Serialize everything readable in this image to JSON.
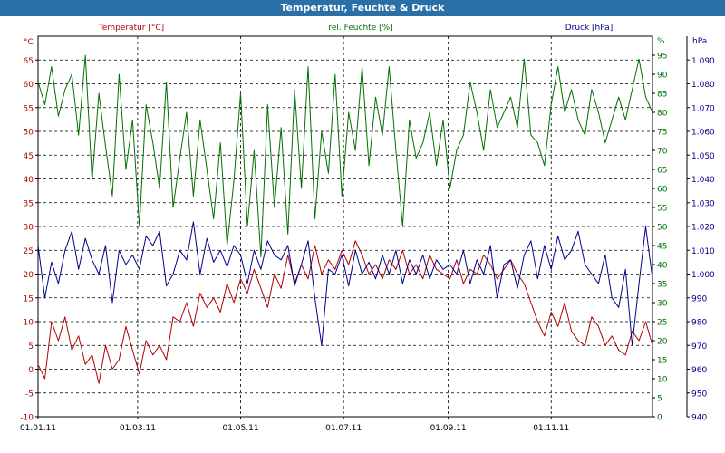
{
  "window": {
    "title": "Temperatur, Feuchte & Druck"
  },
  "chart_data": {
    "type": "line",
    "title": "Temperatur, Feuchte & Druck",
    "grid": true,
    "x": {
      "range": [
        "2011-01-01",
        "2011-12-31"
      ],
      "tick_labels": [
        "01.01.11",
        "01.03.11",
        "01.05.11",
        "01.07.11",
        "01.09.11",
        "01.11.11"
      ],
      "tick_dates": [
        "2011-01-01",
        "2011-03-01",
        "2011-05-01",
        "2011-07-01",
        "2011-09-01",
        "2011-11-01"
      ]
    },
    "axes": {
      "temperature": {
        "unit": "°C",
        "range": [
          -10,
          70
        ],
        "ticks": [
          -10,
          -5,
          0,
          5,
          10,
          15,
          20,
          25,
          30,
          35,
          40,
          45,
          50,
          55,
          60,
          65
        ],
        "tick_labels": [
          "-10",
          "-5",
          "0",
          "5",
          "10",
          "15",
          "20",
          "25",
          "30",
          "35",
          "40",
          "45",
          "50",
          "55",
          "60",
          "65"
        ],
        "color": "#b00000"
      },
      "humidity": {
        "unit": "%",
        "range": [
          0,
          100
        ],
        "ticks": [
          0,
          5,
          10,
          15,
          20,
          25,
          30,
          35,
          40,
          45,
          50,
          55,
          60,
          65,
          70,
          75,
          80,
          85,
          90,
          95
        ],
        "tick_labels": [
          "0",
          "5",
          "10",
          "15",
          "20",
          "25",
          "30",
          "35",
          "40",
          "45",
          "50",
          "55",
          "60",
          "65",
          "70",
          "75",
          "80",
          "85",
          "90",
          "95"
        ],
        "color": "#007000"
      },
      "pressure": {
        "unit": "hPa",
        "range": [
          940,
          1100
        ],
        "ticks": [
          940,
          950,
          960,
          970,
          980,
          990,
          1000,
          1010,
          1020,
          1030,
          1040,
          1050,
          1060,
          1070,
          1080,
          1090
        ],
        "tick_labels": [
          "940",
          "950",
          "960",
          "970",
          "980",
          "990",
          "1.000",
          "1.010",
          "1.020",
          "1.030",
          "1.040",
          "1.050",
          "1.060",
          "1.070",
          "1.080",
          "1.090"
        ],
        "color": "#00008c"
      }
    },
    "series": [
      {
        "name": "Temperatur [°C]",
        "axis": "temperature",
        "color": "#b00000",
        "dates": [
          "2011-01-01",
          "2011-01-05",
          "2011-01-09",
          "2011-01-13",
          "2011-01-17",
          "2011-01-21",
          "2011-01-25",
          "2011-01-29",
          "2011-02-02",
          "2011-02-06",
          "2011-02-10",
          "2011-02-14",
          "2011-02-18",
          "2011-02-22",
          "2011-02-26",
          "2011-03-02",
          "2011-03-06",
          "2011-03-10",
          "2011-03-14",
          "2011-03-18",
          "2011-03-22",
          "2011-03-26",
          "2011-03-30",
          "2011-04-03",
          "2011-04-07",
          "2011-04-11",
          "2011-04-15",
          "2011-04-19",
          "2011-04-23",
          "2011-04-27",
          "2011-05-01",
          "2011-05-05",
          "2011-05-09",
          "2011-05-13",
          "2011-05-17",
          "2011-05-21",
          "2011-05-25",
          "2011-05-29",
          "2011-06-02",
          "2011-06-06",
          "2011-06-10",
          "2011-06-14",
          "2011-06-18",
          "2011-06-22",
          "2011-06-26",
          "2011-06-30",
          "2011-07-04",
          "2011-07-08",
          "2011-07-12",
          "2011-07-16",
          "2011-07-20",
          "2011-07-24",
          "2011-07-28",
          "2011-08-01",
          "2011-08-05",
          "2011-08-09",
          "2011-08-13",
          "2011-08-17",
          "2011-08-21",
          "2011-08-25",
          "2011-08-29",
          "2011-09-02",
          "2011-09-06",
          "2011-09-10",
          "2011-09-14",
          "2011-09-18",
          "2011-09-22",
          "2011-09-26",
          "2011-09-30",
          "2011-10-04",
          "2011-10-08",
          "2011-10-12",
          "2011-10-16",
          "2011-10-20",
          "2011-10-24",
          "2011-10-28",
          "2011-11-01",
          "2011-11-05",
          "2011-11-09",
          "2011-11-13",
          "2011-11-17",
          "2011-11-21",
          "2011-11-25",
          "2011-11-29",
          "2011-12-03",
          "2011-12-07",
          "2011-12-11",
          "2011-12-15",
          "2011-12-19",
          "2011-12-23",
          "2011-12-27",
          "2011-12-31"
        ],
        "values": [
          1,
          -2,
          10,
          6,
          11,
          4,
          7,
          1,
          3,
          -3,
          5,
          0,
          2,
          9,
          4,
          -1,
          6,
          3,
          5,
          2,
          11,
          10,
          14,
          9,
          16,
          13,
          15,
          12,
          18,
          14,
          19,
          16,
          21,
          17,
          13,
          20,
          17,
          24,
          18,
          22,
          19,
          26,
          20,
          23,
          21,
          25,
          22,
          27,
          24,
          20,
          22,
          19,
          23,
          21,
          25,
          20,
          22,
          19,
          24,
          21,
          20,
          19,
          23,
          18,
          21,
          20,
          24,
          22,
          19,
          21,
          23,
          20,
          18,
          14,
          10,
          7,
          12,
          9,
          14,
          8,
          6,
          5,
          11,
          9,
          5,
          7,
          4,
          3,
          8,
          6,
          10,
          5
        ]
      },
      {
        "name": "rel. Feuchte [%]",
        "axis": "humidity",
        "color": "#007000",
        "dates": [
          "2011-01-01",
          "2011-01-05",
          "2011-01-09",
          "2011-01-13",
          "2011-01-17",
          "2011-01-21",
          "2011-01-25",
          "2011-01-29",
          "2011-02-02",
          "2011-02-06",
          "2011-02-10",
          "2011-02-14",
          "2011-02-18",
          "2011-02-22",
          "2011-02-26",
          "2011-03-02",
          "2011-03-06",
          "2011-03-10",
          "2011-03-14",
          "2011-03-18",
          "2011-03-22",
          "2011-03-26",
          "2011-03-30",
          "2011-04-03",
          "2011-04-07",
          "2011-04-11",
          "2011-04-15",
          "2011-04-19",
          "2011-04-23",
          "2011-04-27",
          "2011-05-01",
          "2011-05-05",
          "2011-05-09",
          "2011-05-13",
          "2011-05-17",
          "2011-05-21",
          "2011-05-25",
          "2011-05-29",
          "2011-06-02",
          "2011-06-06",
          "2011-06-10",
          "2011-06-14",
          "2011-06-18",
          "2011-06-22",
          "2011-06-26",
          "2011-06-30",
          "2011-07-04",
          "2011-07-08",
          "2011-07-12",
          "2011-07-16",
          "2011-07-20",
          "2011-07-24",
          "2011-07-28",
          "2011-08-01",
          "2011-08-05",
          "2011-08-09",
          "2011-08-13",
          "2011-08-17",
          "2011-08-21",
          "2011-08-25",
          "2011-08-29",
          "2011-09-02",
          "2011-09-06",
          "2011-09-10",
          "2011-09-14",
          "2011-09-18",
          "2011-09-22",
          "2011-09-26",
          "2011-09-30",
          "2011-10-04",
          "2011-10-08",
          "2011-10-12",
          "2011-10-16",
          "2011-10-20",
          "2011-10-24",
          "2011-10-28",
          "2011-11-01",
          "2011-11-05",
          "2011-11-09",
          "2011-11-13",
          "2011-11-17",
          "2011-11-21",
          "2011-11-25",
          "2011-11-29",
          "2011-12-03",
          "2011-12-07",
          "2011-12-11",
          "2011-12-15",
          "2011-12-19",
          "2011-12-23",
          "2011-12-27",
          "2011-12-31"
        ],
        "values": [
          88,
          82,
          92,
          79,
          86,
          90,
          74,
          95,
          62,
          85,
          71,
          58,
          90,
          65,
          78,
          50,
          82,
          72,
          60,
          88,
          55,
          68,
          80,
          58,
          78,
          65,
          52,
          72,
          45,
          62,
          85,
          50,
          70,
          42,
          82,
          55,
          76,
          48,
          86,
          60,
          92,
          52,
          75,
          64,
          90,
          58,
          80,
          70,
          92,
          66,
          84,
          74,
          92,
          70,
          50,
          78,
          68,
          72,
          80,
          66,
          78,
          60,
          70,
          74,
          88,
          80,
          70,
          86,
          76,
          80,
          84,
          76,
          94,
          74,
          72,
          66,
          82,
          92,
          80,
          86,
          78,
          74,
          86,
          80,
          72,
          78,
          84,
          78,
          86,
          94,
          84,
          80
        ]
      },
      {
        "name": "Druck [hPa]",
        "axis": "pressure",
        "color": "#00008c",
        "dates": [
          "2011-01-01",
          "2011-01-05",
          "2011-01-09",
          "2011-01-13",
          "2011-01-17",
          "2011-01-21",
          "2011-01-25",
          "2011-01-29",
          "2011-02-02",
          "2011-02-06",
          "2011-02-10",
          "2011-02-14",
          "2011-02-18",
          "2011-02-22",
          "2011-02-26",
          "2011-03-02",
          "2011-03-06",
          "2011-03-10",
          "2011-03-14",
          "2011-03-18",
          "2011-03-22",
          "2011-03-26",
          "2011-03-30",
          "2011-04-03",
          "2011-04-07",
          "2011-04-11",
          "2011-04-15",
          "2011-04-19",
          "2011-04-23",
          "2011-04-27",
          "2011-05-01",
          "2011-05-05",
          "2011-05-09",
          "2011-05-13",
          "2011-05-17",
          "2011-05-21",
          "2011-05-25",
          "2011-05-29",
          "2011-06-02",
          "2011-06-06",
          "2011-06-10",
          "2011-06-14",
          "2011-06-18",
          "2011-06-22",
          "2011-06-26",
          "2011-06-30",
          "2011-07-04",
          "2011-07-08",
          "2011-07-12",
          "2011-07-16",
          "2011-07-20",
          "2011-07-24",
          "2011-07-28",
          "2011-08-01",
          "2011-08-05",
          "2011-08-09",
          "2011-08-13",
          "2011-08-17",
          "2011-08-21",
          "2011-08-25",
          "2011-08-29",
          "2011-09-02",
          "2011-09-06",
          "2011-09-10",
          "2011-09-14",
          "2011-09-18",
          "2011-09-22",
          "2011-09-26",
          "2011-09-30",
          "2011-10-04",
          "2011-10-08",
          "2011-10-12",
          "2011-10-16",
          "2011-10-20",
          "2011-10-24",
          "2011-10-28",
          "2011-11-01",
          "2011-11-05",
          "2011-11-09",
          "2011-11-13",
          "2011-11-17",
          "2011-11-21",
          "2011-11-25",
          "2011-11-29",
          "2011-12-03",
          "2011-12-07",
          "2011-12-11",
          "2011-12-15",
          "2011-12-19",
          "2011-12-23",
          "2011-12-27",
          "2011-12-31"
        ],
        "values": [
          1012,
          990,
          1005,
          996,
          1010,
          1018,
          1002,
          1015,
          1006,
          1000,
          1012,
          988,
          1010,
          1004,
          1008,
          1002,
          1016,
          1012,
          1018,
          995,
          1000,
          1010,
          1006,
          1022,
          1000,
          1015,
          1005,
          1010,
          1003,
          1012,
          1008,
          996,
          1010,
          1002,
          1014,
          1008,
          1006,
          1012,
          995,
          1004,
          1014,
          990,
          970,
          1002,
          1000,
          1008,
          995,
          1010,
          1000,
          1005,
          998,
          1008,
          1000,
          1010,
          996,
          1006,
          1000,
          1008,
          998,
          1006,
          1002,
          1004,
          1000,
          1010,
          996,
          1006,
          1000,
          1012,
          990,
          1004,
          1006,
          994,
          1008,
          1014,
          998,
          1012,
          1002,
          1016,
          1006,
          1010,
          1018,
          1004,
          1000,
          996,
          1008,
          990,
          986,
          1002,
          970,
          996,
          1020,
          998
        ]
      }
    ]
  }
}
